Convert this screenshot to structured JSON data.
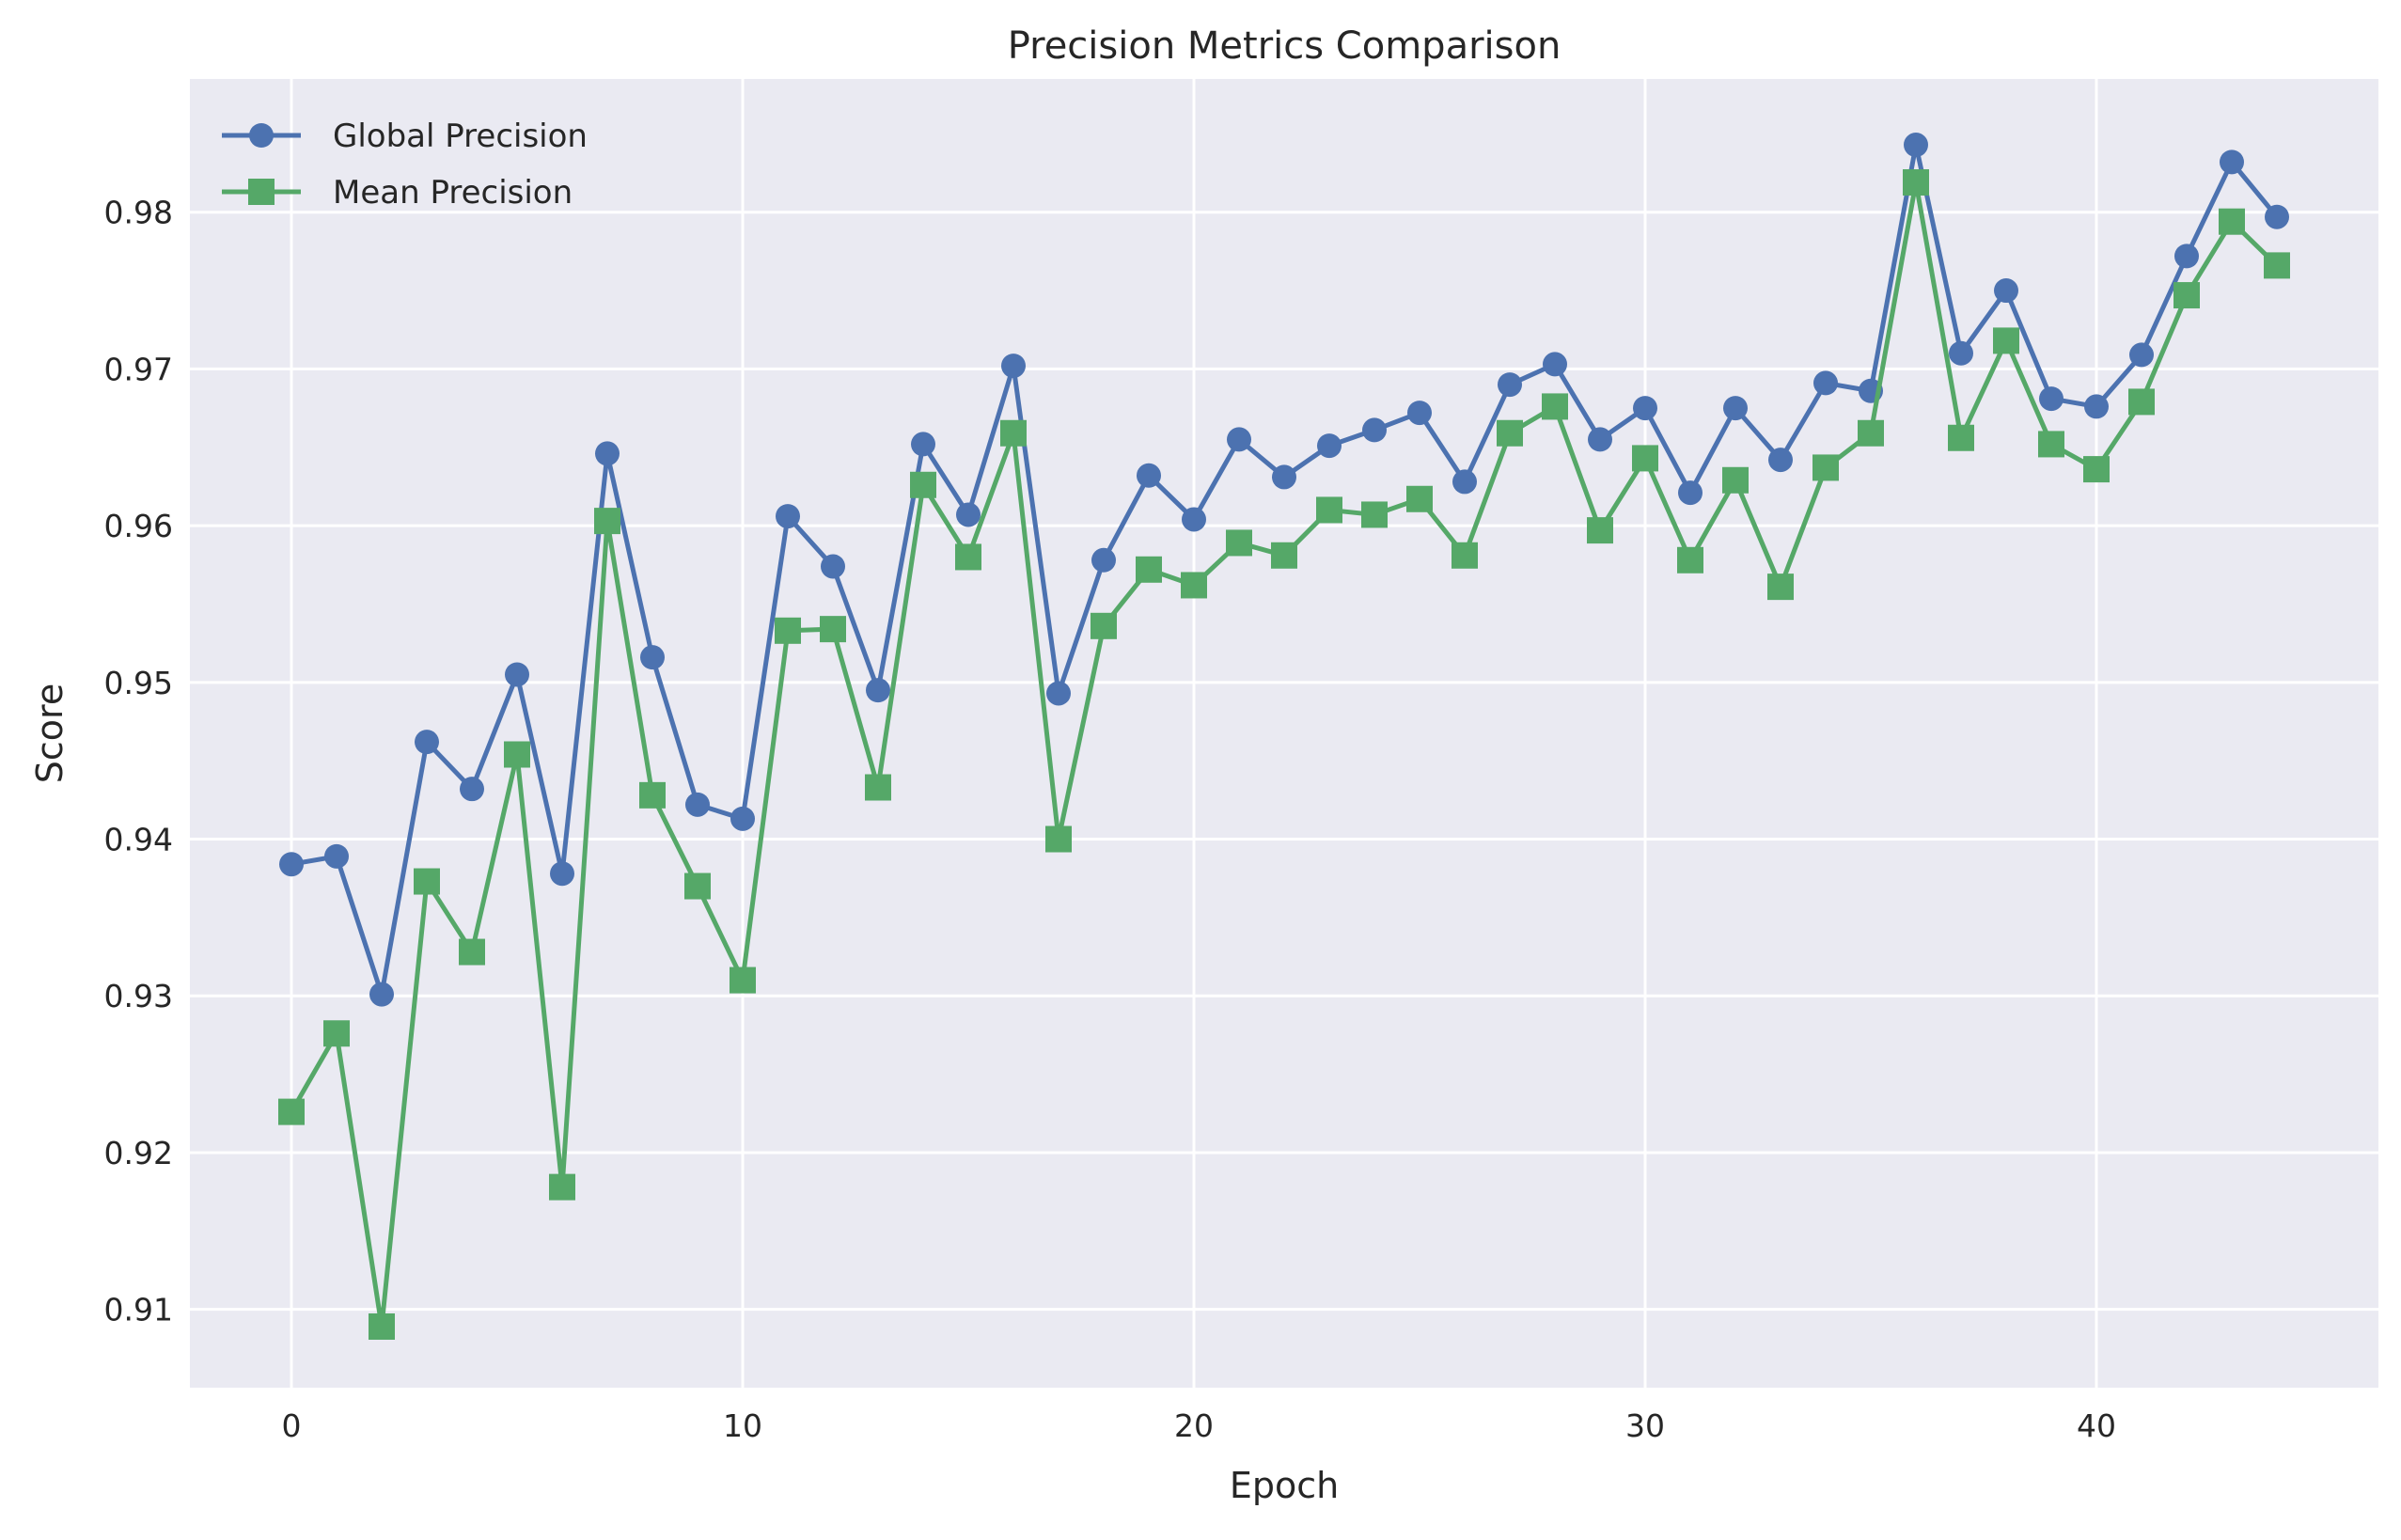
{
  "chart_data": {
    "type": "line",
    "title": "Precision Metrics Comparison",
    "xlabel": "Epoch",
    "ylabel": "Score",
    "xlim": [
      -2.25,
      46.25
    ],
    "ylim": [
      0.905,
      0.9885
    ],
    "xticks": [
      0,
      10,
      20,
      30,
      40
    ],
    "xtick_labels": [
      "0",
      "10",
      "20",
      "30",
      "40"
    ],
    "yticks": [
      0.91,
      0.92,
      0.93,
      0.94,
      0.95,
      0.96,
      0.97,
      0.98
    ],
    "ytick_labels": [
      "0.91",
      "0.92",
      "0.93",
      "0.94",
      "0.95",
      "0.96",
      "0.97",
      "0.98"
    ],
    "grid": true,
    "legend_position": "top-left",
    "background_color": "#eaeaf2",
    "x": [
      0,
      1,
      2,
      3,
      4,
      5,
      6,
      7,
      8,
      9,
      10,
      11,
      12,
      13,
      14,
      15,
      16,
      17,
      18,
      19,
      20,
      21,
      22,
      23,
      24,
      25,
      26,
      27,
      28,
      29,
      30,
      31,
      32,
      33,
      34,
      35,
      36,
      37,
      38,
      39,
      40,
      41,
      42,
      43,
      44
    ],
    "series": [
      {
        "name": "Global Precision",
        "color": "#4c72b0",
        "marker": "circle",
        "values": [
          0.9384,
          0.9389,
          0.9301,
          0.9462,
          0.9432,
          0.9505,
          0.9378,
          0.9646,
          0.9516,
          0.9422,
          0.9413,
          0.9606,
          0.9574,
          0.9495,
          0.9652,
          0.9607,
          0.9702,
          0.9493,
          0.9578,
          0.9632,
          0.9604,
          0.9655,
          0.9631,
          0.9651,
          0.9661,
          0.9672,
          0.9628,
          0.969,
          0.9703,
          0.9655,
          0.9675,
          0.9621,
          0.9675,
          0.9642,
          0.9691,
          0.9686,
          0.9843,
          0.971,
          0.975,
          0.9681,
          0.9676,
          0.9709,
          0.9772,
          0.9832,
          0.9797
        ]
      },
      {
        "name": "Mean Precision",
        "color": "#55a868",
        "marker": "square",
        "values": [
          0.9226,
          0.9276,
          0.9089,
          0.9373,
          0.9328,
          0.9454,
          0.9178,
          0.9603,
          0.9428,
          0.937,
          0.931,
          0.9533,
          0.9534,
          0.9433,
          0.9626,
          0.958,
          0.9659,
          0.94,
          0.9536,
          0.9572,
          0.9562,
          0.9589,
          0.9581,
          0.961,
          0.9607,
          0.9617,
          0.9581,
          0.9659,
          0.9676,
          0.9597,
          0.9643,
          0.9578,
          0.9629,
          0.9561,
          0.9637,
          0.9659,
          0.9819,
          0.9656,
          0.9718,
          0.9652,
          0.9636,
          0.9679,
          0.9747,
          0.9794,
          0.9766
        ]
      }
    ]
  }
}
